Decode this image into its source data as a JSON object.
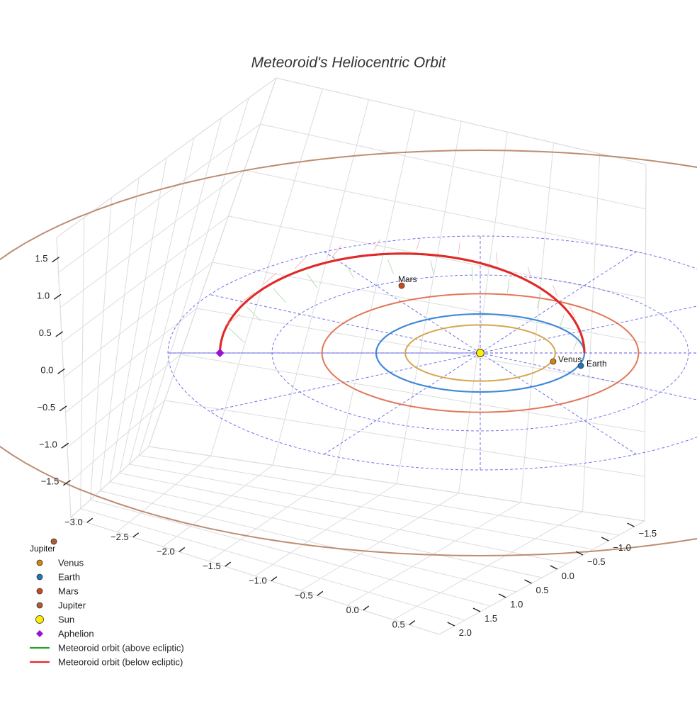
{
  "chart_data": {
    "type": "scatter3d",
    "title": "Meteoroid's Heliocentric Orbit",
    "x_ticks": [
      "−3.0",
      "−2.5",
      "−2.0",
      "−1.5",
      "−1.0",
      "−0.5",
      "0.0",
      "0.5"
    ],
    "y_ticks": [
      "−1.5",
      "−1.0",
      "−0.5",
      "0.0",
      "0.5",
      "1.0",
      "1.5",
      "2.0"
    ],
    "z_ticks": [
      "1.5",
      "1.0",
      "0.5",
      "0.0",
      "−0.5",
      "−1.0",
      "−1.5"
    ],
    "xlim": [
      -3.2,
      0.8
    ],
    "ylim": [
      -1.9,
      2.3
    ],
    "zlim": [
      -2.0,
      2.0
    ],
    "planets": [
      {
        "name": "Venus",
        "orbit_radius_au": 0.72,
        "color": "#d4a046",
        "marker_color": "#d4860b"
      },
      {
        "name": "Earth",
        "orbit_radius_au": 1.0,
        "color": "#3a86d6",
        "marker_color": "#1f77b4"
      },
      {
        "name": "Mars",
        "orbit_radius_au": 1.52,
        "color": "#e07050",
        "marker_color": "#c94a1e"
      },
      {
        "name": "Jupiter",
        "orbit_radius_au": 5.2,
        "color": "#b8876a",
        "marker_color": "#b05a2e"
      }
    ],
    "sun": {
      "name": "Sun",
      "color": "#ffee00"
    },
    "aphelion": {
      "name": "Aphelion",
      "color": "#9a12d8"
    },
    "meteoroid": {
      "above_label": "Meteoroid orbit (above ecliptic)",
      "below_label": "Meteoroid orbit (below ecliptic)",
      "above_color": "#2ca02c",
      "below_color": "#e8262a"
    },
    "legend": [
      {
        "label": "Venus",
        "marker": "circle",
        "color": "#d4860b"
      },
      {
        "label": "Earth",
        "marker": "circle",
        "color": "#1f77b4"
      },
      {
        "label": "Mars",
        "marker": "circle",
        "color": "#c94a1e"
      },
      {
        "label": "Jupiter",
        "marker": "circle",
        "color": "#b05a2e"
      },
      {
        "label": "Sun",
        "marker": "circle-large",
        "color": "#ffee00"
      },
      {
        "label": "Aphelion",
        "marker": "diamond",
        "color": "#9a12d8"
      },
      {
        "label": "Meteoroid orbit (above ecliptic)",
        "marker": "line",
        "color": "#2ca02c"
      },
      {
        "label": "Meteoroid orbit (below ecliptic)",
        "marker": "line",
        "color": "#e8262a"
      }
    ],
    "legend_position": "bottom-left"
  }
}
